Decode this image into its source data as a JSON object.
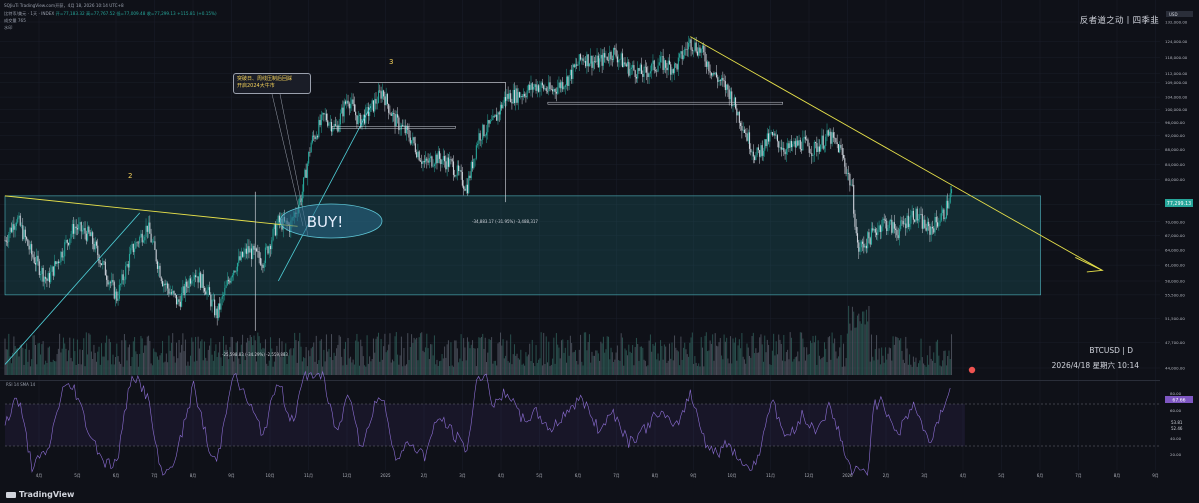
{
  "header": {
    "title_line": "SQJiuTi TradingView.com开获，4月 18, 2026 10:14 UTC+8",
    "symbol_line": "比特币/美元 · 1天 · INDEX",
    "ohlc": [
      "开=77,183.32",
      "高=77,767.52",
      "低=77,009.48",
      "收=77,299.13",
      "+115.81 (+0.15%)"
    ],
    "volume_line": "成交量  765",
    "extra_line": "水印"
  },
  "brand": "反者道之动丨四季韭",
  "symbol_footer": "BTCUSD  |  D",
  "timestamp": "2026/4/18 星期六 10:14",
  "tradingview_label": "TradingView",
  "annotations": {
    "wave2": "2",
    "wave3": "3",
    "buy": "BUY!",
    "note_line1": "突破日、周线压制后回踩",
    "note_line2": "开启2024大牛市",
    "measure1": "-25,598.83 (-34.29%) -2,559,883",
    "measure2": "-34,883.17 (-31.95%) -3,488,317"
  },
  "rsi": {
    "label": "RSI  14  SMA  14",
    "current": "67.66",
    "values": [
      "53.81",
      "52.46"
    ],
    "axis": [
      "80.00",
      "60.00",
      "40.00",
      "20.00"
    ]
  },
  "chart_data": {
    "type": "line",
    "series_kind": "candlestick",
    "y_axis_labels": [
      "132,000.00",
      "124,000.00",
      "118,000.00",
      "112,000.00",
      "109,000.00",
      "104,000.00",
      "100,000.00",
      "96,000.00",
      "92,000.00",
      "88,000.00",
      "84,000.00",
      "80,000.00",
      "74,000.00",
      "70,000.00",
      "67,000.00",
      "64,000.00",
      "61,000.00",
      "58,000.00",
      "55,500.00",
      "51,500.00",
      "47,700.00",
      "44,000.00"
    ],
    "y_axis_values": [
      132000,
      124000,
      118000,
      112000,
      109000,
      104000,
      100000,
      96000,
      92000,
      88000,
      84000,
      80000,
      74000,
      70000,
      67000,
      64000,
      61000,
      58000,
      55500,
      51500,
      47700,
      44000
    ],
    "current_price_label": "77,299.13",
    "x_axis_labels": [
      "4月",
      "5月",
      "6月",
      "7月",
      "8月",
      "9月",
      "10月",
      "11月",
      "12月",
      "2025",
      "2月",
      "3月",
      "4月",
      "5月",
      "6月",
      "7月",
      "8月",
      "9月",
      "10月",
      "11月",
      "12月",
      "2026",
      "2月",
      "3月",
      "4月",
      "5月",
      "6月",
      "7月",
      "8月",
      "9月"
    ],
    "x_axis_months": [
      0,
      1,
      2,
      3,
      4,
      5,
      6,
      7,
      8,
      9,
      10,
      11,
      12,
      13,
      14,
      15,
      16,
      17,
      18,
      19,
      20,
      21,
      22,
      23,
      24,
      25,
      26,
      27,
      28,
      29
    ],
    "price_path": [
      [
        0,
        66000
      ],
      [
        0.3,
        71000
      ],
      [
        0.7,
        63000
      ],
      [
        1.1,
        58000
      ],
      [
        1.5,
        64000
      ],
      [
        1.8,
        69000
      ],
      [
        2.2,
        67000
      ],
      [
        2.6,
        60000
      ],
      [
        2.9,
        55000
      ],
      [
        3.3,
        64000
      ],
      [
        3.7,
        69000
      ],
      [
        4.1,
        58000
      ],
      [
        4.5,
        54000
      ],
      [
        4.9,
        60000
      ],
      [
        5.2,
        57000
      ],
      [
        5.5,
        52000
      ],
      [
        5.9,
        60000
      ],
      [
        6.3,
        64000
      ],
      [
        6.7,
        62000
      ],
      [
        7.1,
        70000
      ],
      [
        7.4,
        69000
      ],
      [
        7.7,
        76000
      ],
      [
        7.95,
        90000
      ],
      [
        8.3,
        98000
      ],
      [
        8.6,
        94000
      ],
      [
        8.9,
        104000
      ],
      [
        9.2,
        96000
      ],
      [
        9.5,
        100000
      ],
      [
        9.8,
        106000
      ],
      [
        10.1,
        97000
      ],
      [
        10.5,
        92000
      ],
      [
        10.9,
        84000
      ],
      [
        11.2,
        86000
      ],
      [
        11.6,
        84000
      ],
      [
        12.0,
        78000
      ],
      [
        12.3,
        92000
      ],
      [
        12.7,
        96000
      ],
      [
        13.0,
        104000
      ],
      [
        13.4,
        105000
      ],
      [
        13.8,
        108000
      ],
      [
        14.2,
        106000
      ],
      [
        14.6,
        110000
      ],
      [
        15.0,
        118000
      ],
      [
        15.4,
        116000
      ],
      [
        15.8,
        120000
      ],
      [
        16.2,
        114000
      ],
      [
        16.6,
        112000
      ],
      [
        17.0,
        116000
      ],
      [
        17.4,
        114000
      ],
      [
        17.8,
        124000
      ],
      [
        18.1,
        120000
      ],
      [
        18.4,
        112000
      ],
      [
        18.8,
        106000
      ],
      [
        19.2,
        94000
      ],
      [
        19.5,
        86000
      ],
      [
        19.9,
        92000
      ],
      [
        20.3,
        88000
      ],
      [
        20.7,
        90000
      ],
      [
        21.0,
        88000
      ],
      [
        21.4,
        92000
      ],
      [
        21.7,
        88000
      ],
      [
        22.0,
        78000
      ],
      [
        22.15,
        64000
      ],
      [
        22.4,
        66000
      ],
      [
        22.8,
        70000
      ],
      [
        23.2,
        68000
      ],
      [
        23.6,
        72000
      ],
      [
        24.0,
        68000
      ],
      [
        24.4,
        72000
      ],
      [
        24.6,
        77299
      ]
    ],
    "volume_bars": 260,
    "lines": {
      "support_zone": [
        55500,
        76000
      ],
      "downtrend_1": [
        [
          0,
          76000
        ],
        [
          7.6,
          69000
        ]
      ],
      "downtrend_2": [
        [
          17.8,
          126000
        ],
        [
          28.5,
          60000
        ]
      ]
    }
  }
}
